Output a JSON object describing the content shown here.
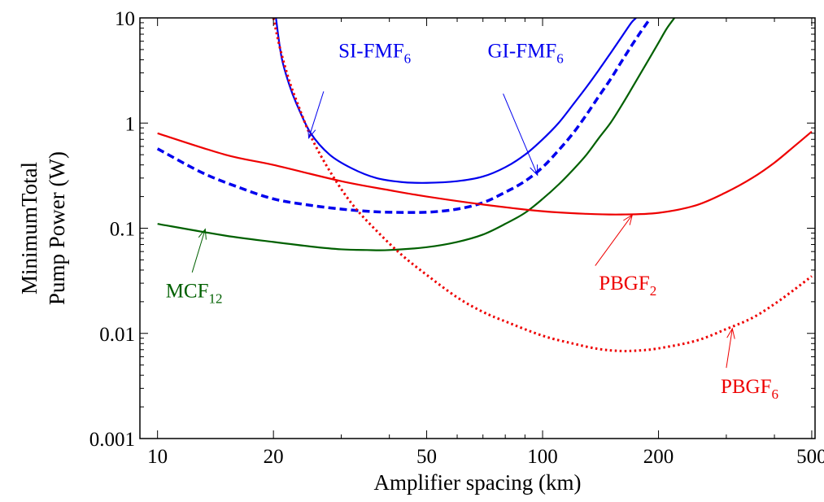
{
  "chart_data": {
    "type": "line",
    "xscale": "log",
    "yscale": "log",
    "xlim": [
      9,
      510
    ],
    "ylim": [
      0.001,
      10
    ],
    "xlabel": "Amplifier spacing (km)",
    "ylabel_lines": [
      "MinimumTotal",
      "Pump Power (W)"
    ],
    "xticks": [
      10,
      20,
      50,
      100,
      200,
      500
    ],
    "xtick_labels": [
      "10",
      "20",
      "50",
      "100",
      "200",
      "500"
    ],
    "yticks": [
      0.001,
      0.01,
      0.1,
      1,
      10
    ],
    "ytick_labels": [
      "0.001",
      "0.01",
      "0.1",
      "1",
      "10"
    ],
    "grid": false,
    "series": [
      {
        "name": "SI-FMF6",
        "label_main": "SI-FMF",
        "label_sub": "6",
        "color": "#0000ee",
        "style": "solid",
        "x": [
          20.3,
          21,
          22,
          23,
          25,
          28,
          32,
          37,
          43,
          50,
          60,
          70,
          80,
          90,
          100,
          110,
          120,
          130,
          140,
          150,
          160,
          170,
          175
        ],
        "y": [
          10,
          4.2,
          2.3,
          1.5,
          0.8,
          0.5,
          0.37,
          0.3,
          0.275,
          0.27,
          0.28,
          0.31,
          0.38,
          0.5,
          0.7,
          1.0,
          1.5,
          2.2,
          3.2,
          4.6,
          6.5,
          9.0,
          10
        ]
      },
      {
        "name": "GI-FMF6",
        "label_main": "GI-FMF",
        "label_sub": "6",
        "color": "#0000ee",
        "style": "dashed",
        "x": [
          10,
          13,
          16,
          20,
          25,
          30,
          35,
          40,
          50,
          60,
          70,
          80,
          90,
          100,
          110,
          120,
          130,
          140,
          150,
          160,
          170,
          180,
          190
        ],
        "y": [
          0.57,
          0.34,
          0.25,
          0.19,
          0.165,
          0.152,
          0.145,
          0.142,
          0.142,
          0.152,
          0.175,
          0.22,
          0.28,
          0.38,
          0.55,
          0.8,
          1.2,
          1.8,
          2.6,
          3.8,
          5.4,
          7.4,
          9.8
        ]
      },
      {
        "name": "MCF12",
        "label_main": "MCF",
        "label_sub": "12",
        "color": "#006000",
        "style": "solid",
        "x": [
          10,
          15,
          20,
          25,
          30,
          35,
          40,
          50,
          60,
          70,
          80,
          90,
          100,
          110,
          120,
          130,
          140,
          150,
          160,
          170,
          180,
          190,
          200,
          210,
          220
        ],
        "y": [
          0.11,
          0.085,
          0.074,
          0.067,
          0.063,
          0.062,
          0.062,
          0.066,
          0.074,
          0.087,
          0.11,
          0.14,
          0.19,
          0.26,
          0.36,
          0.5,
          0.72,
          1.0,
          1.45,
          2.1,
          3.0,
          4.2,
          5.8,
          7.9,
          10
        ]
      },
      {
        "name": "PBGF2",
        "label_main": "PBGF",
        "label_sub": "2",
        "color": "#ee0000",
        "style": "solid",
        "x": [
          10,
          15,
          20,
          30,
          40,
          50,
          70,
          100,
          130,
          160,
          200,
          250,
          300,
          350,
          400,
          450,
          500
        ],
        "y": [
          0.8,
          0.5,
          0.4,
          0.28,
          0.23,
          0.2,
          0.168,
          0.145,
          0.137,
          0.135,
          0.14,
          0.165,
          0.22,
          0.3,
          0.42,
          0.6,
          0.83
        ]
      },
      {
        "name": "PBGF6",
        "label_main": "PBGF",
        "label_sub": "6",
        "color": "#ee0000",
        "style": "dotted",
        "x": [
          20,
          20.5,
          21,
          22,
          23,
          25,
          28,
          32,
          37,
          43,
          50,
          60,
          70,
          80,
          100,
          120,
          140,
          160,
          180,
          200,
          250,
          300,
          350,
          400,
          450,
          500
        ],
        "y": [
          10,
          6.5,
          4.5,
          2.5,
          1.6,
          0.75,
          0.35,
          0.17,
          0.095,
          0.056,
          0.036,
          0.022,
          0.016,
          0.013,
          0.0095,
          0.008,
          0.0071,
          0.0068,
          0.0069,
          0.0072,
          0.0085,
          0.011,
          0.014,
          0.019,
          0.026,
          0.035
        ]
      }
    ],
    "annotations": [
      {
        "series": "SI-FMF6",
        "text_x": 29.5,
        "text_y": 4.2,
        "arrow_from": [
          27,
          2.0
        ],
        "arrow_to": [
          24.7,
          0.72
        ]
      },
      {
        "series": "GI-FMF6",
        "text_x": 72,
        "text_y": 4.2,
        "arrow_from": [
          79,
          1.9
        ],
        "arrow_to": [
          97,
          0.32
        ]
      },
      {
        "series": "MCF12",
        "text_x": 10.5,
        "text_y": 0.022,
        "arrow_from": [
          12.3,
          0.038
        ],
        "arrow_to": [
          13.3,
          0.098
        ]
      },
      {
        "series": "PBGF2",
        "text_x": 140,
        "text_y": 0.026,
        "arrow_from": [
          137,
          0.044
        ],
        "arrow_to": [
          171,
          0.134
        ]
      },
      {
        "series": "PBGF6",
        "text_x": 290,
        "text_y": 0.0027,
        "arrow_from": [
          300,
          0.0047
        ],
        "arrow_to": [
          311,
          0.0111
        ]
      }
    ]
  }
}
